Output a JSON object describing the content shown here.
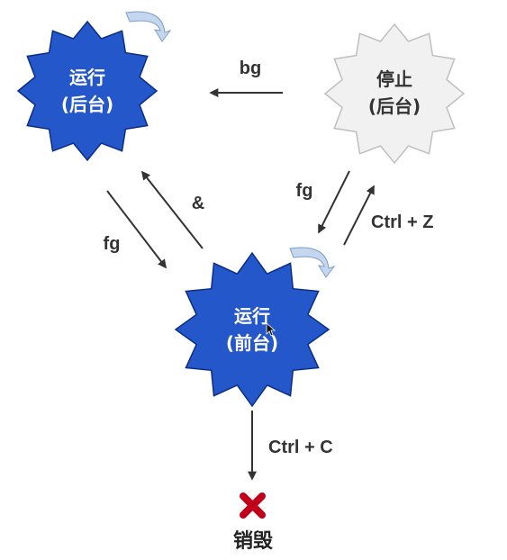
{
  "colors": {
    "running": "#2457c9",
    "running_stroke": "#0b2d86",
    "stopped": "#f1f1f1",
    "stopped_stroke": "#bfbfbf",
    "arrow": "#333333",
    "self_loop": "#c5d7ee",
    "destroy": "#c0001a"
  },
  "states": {
    "bg_running": {
      "line1": "运行",
      "line2": "(后台)"
    },
    "bg_stopped": {
      "line1": "停止",
      "line2": "(后台)"
    },
    "fg_running": {
      "line1": "运行",
      "line2": "(前台)"
    },
    "destroyed": {
      "label": "销毁"
    }
  },
  "edges": {
    "stopped_to_bg": "bg",
    "bg_to_fg": "fg",
    "fg_to_bg": "&",
    "stopped_to_fg": "fg",
    "fg_to_stopped": "Ctrl + Z",
    "fg_to_destroyed": "Ctrl + C"
  },
  "icons": {
    "self_loop": "curved-arrow-icon",
    "destroy": "cross-mark-icon",
    "cursor": "mouse-pointer-icon"
  }
}
